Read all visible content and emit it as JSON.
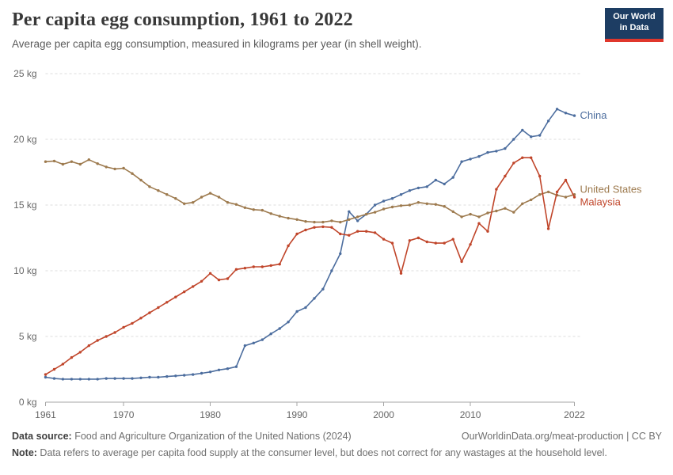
{
  "header": {
    "title": "Per capita egg consumption, 1961 to 2022",
    "subtitle": "Average per capita egg consumption, measured in kilograms per year (in shell weight).",
    "logo": {
      "line1": "Our World",
      "line2": "in Data",
      "bg_color": "#1d3d63",
      "accent_color": "#e0372c"
    }
  },
  "chart_data": {
    "type": "line",
    "title": "Per capita egg consumption, 1961 to 2022",
    "subtitle": "Average per capita egg consumption, measured in kilograms per year (in shell weight).",
    "xlabel": "",
    "ylabel": "",
    "xlim": [
      1961,
      2022
    ],
    "ylim": [
      0,
      25
    ],
    "grid": "horizontal-dashed",
    "legend_position": "end-of-line-labels",
    "ytick_values": [
      0,
      5,
      10,
      15,
      20,
      25
    ],
    "ytick_labels": [
      "0 kg",
      "5 kg",
      "10 kg",
      "15 kg",
      "20 kg",
      "25 kg"
    ],
    "xtick_values": [
      1961,
      1970,
      1980,
      1990,
      2000,
      2010,
      2022
    ],
    "x": [
      1961,
      1962,
      1963,
      1964,
      1965,
      1966,
      1967,
      1968,
      1969,
      1970,
      1971,
      1972,
      1973,
      1974,
      1975,
      1976,
      1977,
      1978,
      1979,
      1980,
      1981,
      1982,
      1983,
      1984,
      1985,
      1986,
      1987,
      1988,
      1989,
      1990,
      1991,
      1992,
      1993,
      1994,
      1995,
      1996,
      1997,
      1998,
      1999,
      2000,
      2001,
      2002,
      2003,
      2004,
      2005,
      2006,
      2007,
      2008,
      2009,
      2010,
      2011,
      2012,
      2013,
      2014,
      2015,
      2016,
      2017,
      2018,
      2019,
      2020,
      2021,
      2022
    ],
    "series": [
      {
        "name": "China",
        "color": "#4c6d9e",
        "values": [
          1.9,
          1.8,
          1.75,
          1.75,
          1.75,
          1.75,
          1.75,
          1.8,
          1.8,
          1.8,
          1.8,
          1.85,
          1.9,
          1.9,
          1.95,
          2.0,
          2.05,
          2.1,
          2.2,
          2.3,
          2.45,
          2.55,
          2.7,
          4.3,
          4.5,
          4.75,
          5.2,
          5.6,
          6.1,
          6.9,
          7.2,
          7.9,
          8.6,
          10.0,
          11.3,
          14.5,
          13.8,
          14.3,
          15.0,
          15.3,
          15.5,
          15.8,
          16.1,
          16.3,
          16.4,
          16.9,
          16.6,
          17.1,
          18.3,
          18.5,
          18.7,
          19.0,
          19.1,
          19.3,
          20.0,
          20.7,
          20.2,
          20.3,
          21.4,
          22.3,
          22.0,
          21.8
        ]
      },
      {
        "name": "United States",
        "color": "#9d7a4e",
        "values": [
          18.3,
          18.35,
          18.1,
          18.3,
          18.1,
          18.45,
          18.15,
          17.9,
          17.75,
          17.8,
          17.4,
          16.9,
          16.4,
          16.1,
          15.8,
          15.5,
          15.1,
          15.2,
          15.6,
          15.9,
          15.6,
          15.2,
          15.05,
          14.8,
          14.65,
          14.6,
          14.35,
          14.15,
          14.0,
          13.9,
          13.75,
          13.7,
          13.7,
          13.8,
          13.7,
          13.9,
          14.1,
          14.3,
          14.45,
          14.7,
          14.85,
          14.95,
          15.0,
          15.2,
          15.1,
          15.05,
          14.9,
          14.5,
          14.1,
          14.3,
          14.1,
          14.4,
          14.55,
          14.75,
          14.45,
          15.1,
          15.4,
          15.8,
          16.0,
          15.75,
          15.6,
          15.8
        ]
      },
      {
        "name": "Malaysia",
        "color": "#c0452a",
        "values": [
          2.1,
          2.5,
          2.9,
          3.4,
          3.8,
          4.3,
          4.7,
          5.0,
          5.3,
          5.7,
          6.0,
          6.4,
          6.8,
          7.2,
          7.6,
          8.0,
          8.4,
          8.8,
          9.2,
          9.8,
          9.3,
          9.4,
          10.1,
          10.2,
          10.3,
          10.3,
          10.4,
          10.5,
          11.9,
          12.8,
          13.1,
          13.3,
          13.35,
          13.3,
          12.8,
          12.7,
          13.0,
          13.0,
          12.9,
          12.4,
          12.1,
          9.8,
          12.3,
          12.5,
          12.2,
          12.1,
          12.1,
          12.4,
          10.7,
          12.0,
          13.6,
          13.0,
          16.2,
          17.2,
          18.2,
          18.6,
          18.6,
          17.2,
          13.2,
          16.0,
          16.9,
          15.6
        ]
      }
    ],
    "colors": {
      "grid": "#dcdcdc",
      "axis": "#a5a5a5",
      "tick_text": "#666666"
    }
  },
  "footer": {
    "source_label": "Data source:",
    "source_text": " Food and Agriculture Organization of the United Nations (2024)",
    "link_text": "OurWorldinData.org/meat-production | CC BY",
    "note_label": "Note:",
    "note_text": " Data refers to average per capita food supply at the consumer level, but does not correct for any wastages at the household level."
  }
}
